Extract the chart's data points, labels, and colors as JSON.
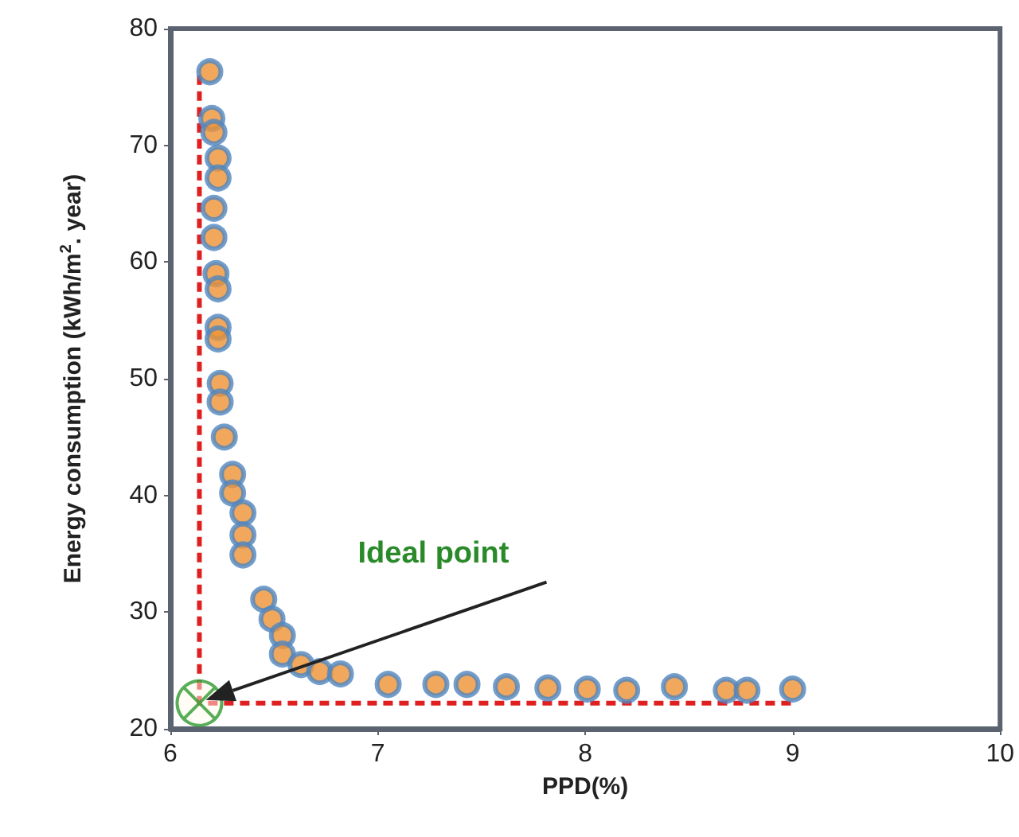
{
  "chart_data": {
    "type": "scatter",
    "xlabel": "PPD(%)",
    "ylabel": "Energy consumption (kWh/m$^{2}$. year)",
    "xlim": [
      6,
      10
    ],
    "xticks": [
      6,
      7,
      8,
      9,
      10
    ],
    "ylim": [
      20,
      80
    ],
    "yticks": [
      20,
      30,
      40,
      50,
      60,
      70,
      80
    ],
    "grid": false,
    "annotations": [
      "Ideal point"
    ],
    "series": [
      {
        "marker": "circle",
        "color": "#ed9234",
        "x": [
          6.19,
          6.2,
          6.21,
          6.23,
          6.23,
          6.21,
          6.21,
          6.22,
          6.23,
          6.23,
          6.23,
          6.24,
          6.24,
          6.26,
          6.3,
          6.3,
          6.35,
          6.35,
          6.35,
          6.45,
          6.49,
          6.54,
          6.54,
          6.63,
          6.72,
          6.82,
          7.05,
          7.28,
          7.43,
          7.62,
          7.82,
          8.01,
          8.2,
          8.43,
          8.68,
          8.78,
          9.0
        ],
        "values": [
          76.3,
          72.3,
          71.1,
          68.9,
          67.2,
          64.6,
          62.1,
          59.0,
          57.7,
          54.4,
          53.4,
          49.6,
          48.0,
          45.0,
          41.8,
          40.2,
          38.5,
          36.6,
          34.9,
          31.1,
          29.4,
          28.0,
          26.4,
          25.5,
          24.9,
          24.7,
          23.8,
          23.8,
          23.8,
          23.6,
          23.5,
          23.4,
          23.3,
          23.6,
          23.3,
          23.3,
          23.4
        ]
      },
      {
        "type": "line",
        "marker": "none",
        "line_style": "dashed",
        "color": "#e02020",
        "x": [
          6.14,
          6.14,
          9.0
        ],
        "values": [
          76,
          22.2,
          22.2
        ]
      },
      {
        "type": "scatter",
        "marker": "cross",
        "color": "#2e9a2e",
        "x": [
          6.14
        ],
        "values": [
          22.2
        ]
      }
    ]
  }
}
